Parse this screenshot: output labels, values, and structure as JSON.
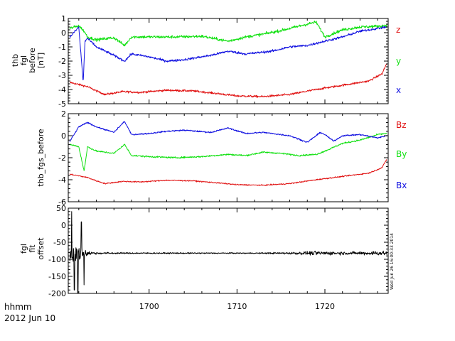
{
  "footer": {
    "format_label": "hhmm",
    "date_label": "2012 Jun 10"
  },
  "timestamp": "Wed Jun 26 16:00:33 2014",
  "colors": {
    "red": "#e01010",
    "green": "#10e010",
    "blue": "#1010e0",
    "black": "#000000"
  },
  "chart_data": [
    {
      "type": "line",
      "ylabel": [
        "thb",
        "fgl",
        "before",
        "[nT]"
      ],
      "ylim": [
        -5,
        1
      ],
      "yticks": [
        1,
        0,
        -1,
        -2,
        -3,
        -4,
        -5
      ],
      "xlim": [
        1690.8,
        1727.2
      ],
      "xticks": [
        1700,
        1710,
        1720
      ],
      "legend_position": "right",
      "series": [
        {
          "name": "z",
          "color": "#e01010",
          "noise": 0.07,
          "x": [
            1691,
            1693,
            1694,
            1695,
            1697,
            1699,
            1702,
            1705,
            1708,
            1710,
            1713,
            1716,
            1719,
            1722,
            1725,
            1726.5,
            1727
          ],
          "y": [
            -3.5,
            -3.8,
            -4.1,
            -4.35,
            -4.15,
            -4.2,
            -4.05,
            -4.1,
            -4.3,
            -4.45,
            -4.5,
            -4.35,
            -4.0,
            -3.7,
            -3.4,
            -2.9,
            -2.2
          ]
        },
        {
          "name": "y",
          "color": "#10e010",
          "noise": 0.1,
          "x": [
            1691,
            1692,
            1692.6,
            1693,
            1694,
            1696,
            1697.2,
            1698,
            1700,
            1703,
            1706,
            1709,
            1711,
            1713,
            1715,
            1717,
            1719,
            1720,
            1722,
            1724,
            1726,
            1727
          ],
          "y": [
            0.3,
            0.5,
            0.1,
            -0.3,
            -0.5,
            -0.35,
            -0.9,
            -0.3,
            -0.3,
            -0.3,
            -0.25,
            -0.6,
            -0.3,
            -0.1,
            0.15,
            0.45,
            0.75,
            -0.3,
            0.2,
            0.4,
            0.45,
            0.5
          ]
        },
        {
          "name": "x",
          "color": "#1010e0",
          "noise": 0.08,
          "x": [
            1691,
            1692,
            1692.5,
            1692.7,
            1693,
            1694,
            1696,
            1697.2,
            1698,
            1700,
            1702,
            1704,
            1707,
            1709,
            1711,
            1714,
            1716,
            1718,
            1720,
            1722,
            1724,
            1726,
            1727
          ],
          "y": [
            -0.3,
            0.4,
            -3.5,
            -0.6,
            -0.4,
            -1.0,
            -1.6,
            -2.0,
            -1.5,
            -1.7,
            -2.0,
            -1.9,
            -1.6,
            -1.3,
            -1.5,
            -1.3,
            -1.0,
            -0.9,
            -0.6,
            -0.3,
            0.1,
            0.3,
            0.4
          ]
        }
      ]
    },
    {
      "type": "line",
      "ylabel": [
        "thb_fgs_before"
      ],
      "ylim": [
        -6,
        2
      ],
      "yticks": [
        2,
        0,
        -2,
        -4,
        -6
      ],
      "xlim": [
        1690.8,
        1727.2
      ],
      "xticks": [
        1700,
        1710,
        1720
      ],
      "legend_position": "right",
      "series": [
        {
          "name": "Bz",
          "color": "#e01010",
          "noise": 0.05,
          "x": [
            1691,
            1693,
            1694,
            1695,
            1697,
            1699,
            1702,
            1705,
            1708,
            1710,
            1713,
            1716,
            1719,
            1722,
            1725,
            1726.5,
            1727
          ],
          "y": [
            -3.5,
            -3.8,
            -4.1,
            -4.35,
            -4.15,
            -4.2,
            -4.05,
            -4.1,
            -4.3,
            -4.45,
            -4.5,
            -4.35,
            -4.0,
            -3.7,
            -3.4,
            -2.9,
            -2.2
          ]
        },
        {
          "name": "By",
          "color": "#10e010",
          "noise": 0.07,
          "x": [
            1691,
            1692,
            1692.6,
            1693,
            1694,
            1696,
            1697.2,
            1698,
            1700,
            1703,
            1706,
            1709,
            1711,
            1713,
            1715,
            1717,
            1719,
            1720,
            1722,
            1724,
            1726,
            1727
          ],
          "y": [
            -0.8,
            -1.0,
            -3.2,
            -1.0,
            -1.4,
            -1.6,
            -0.8,
            -1.8,
            -1.9,
            -2.0,
            -1.9,
            -1.7,
            -1.8,
            -1.5,
            -1.6,
            -1.8,
            -1.7,
            -1.4,
            -0.7,
            -0.4,
            0.1,
            0.2
          ]
        },
        {
          "name": "Bx",
          "color": "#1010e0",
          "noise": 0.06,
          "x": [
            1691,
            1692,
            1693,
            1694,
            1696,
            1697.2,
            1698,
            1700,
            1702,
            1704,
            1707,
            1709,
            1711,
            1713,
            1716,
            1718,
            1719.5,
            1720,
            1721,
            1722,
            1724,
            1726,
            1727
          ],
          "y": [
            -0.5,
            0.8,
            1.2,
            0.8,
            0.3,
            1.3,
            0.1,
            0.2,
            0.4,
            0.5,
            0.3,
            0.7,
            0.2,
            0.3,
            0.0,
            -0.6,
            0.3,
            0.1,
            -0.5,
            0.0,
            0.1,
            -0.2,
            0.0
          ]
        }
      ]
    },
    {
      "type": "line",
      "ylabel": [
        "fgl",
        "fit",
        "offset"
      ],
      "ylim": [
        -200,
        50
      ],
      "yticks": [
        50,
        0,
        -50,
        -100,
        -150,
        -200
      ],
      "xlim": [
        1690.8,
        1727.2
      ],
      "xticks": [
        1700,
        1710,
        1720
      ],
      "series": [
        {
          "color": "#000000",
          "baseline": -82,
          "noise_profile": [
            [
              1691,
              70
            ],
            [
              1692,
              45
            ],
            [
              1693,
              15
            ],
            [
              1694,
              6
            ],
            [
              1697,
              4
            ],
            [
              1712,
              3
            ],
            [
              1716,
              6
            ],
            [
              1719,
              12
            ],
            [
              1723,
              8
            ],
            [
              1727,
              14
            ]
          ],
          "spikes": [
            [
              1691.2,
              40
            ],
            [
              1691.5,
              -190
            ],
            [
              1691.9,
              -200
            ],
            [
              1692.3,
              10
            ],
            [
              1692.6,
              -175
            ]
          ]
        }
      ]
    }
  ]
}
